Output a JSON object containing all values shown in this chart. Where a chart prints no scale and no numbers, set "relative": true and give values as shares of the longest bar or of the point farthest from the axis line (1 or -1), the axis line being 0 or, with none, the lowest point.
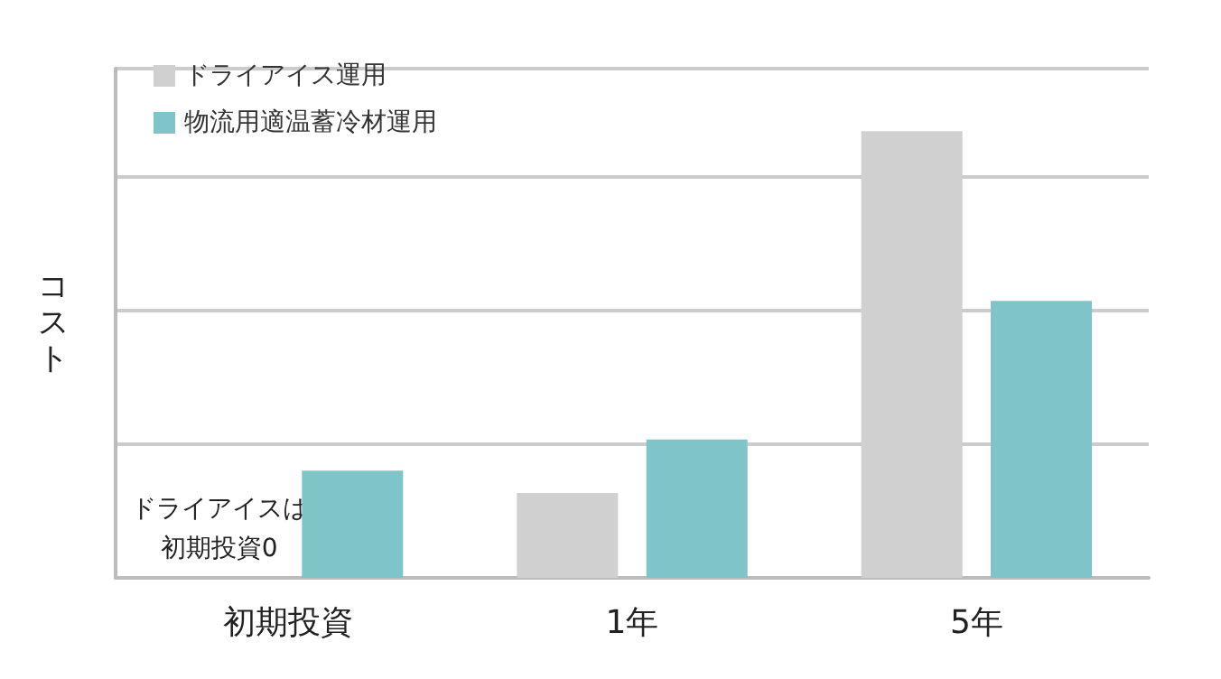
{
  "chart_data": {
    "type": "bar",
    "relative": true,
    "ylabel": "コスト",
    "categories": [
      "初期投資",
      "1年",
      "5年"
    ],
    "series": [
      {
        "name": "ドライアイス運用",
        "color": "#d0d0d0",
        "values": [
          0,
          0.19,
          1
        ]
      },
      {
        "name": "物流用適温蓄冷材運用",
        "color": "#7fc4c6",
        "values": [
          0.24,
          0.31,
          0.62
        ]
      }
    ],
    "annotations": [
      "ドライアイスは",
      "初期投資0"
    ],
    "grid": "y",
    "legend": "top left"
  }
}
